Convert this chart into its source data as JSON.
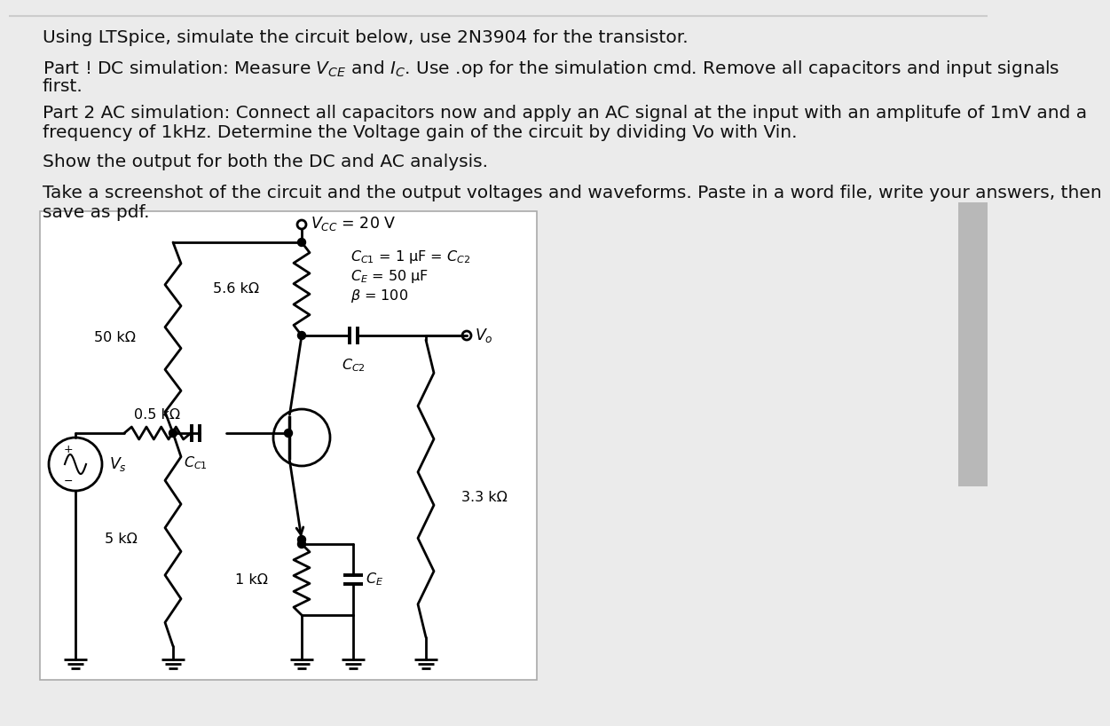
{
  "bg_color": "#ebebeb",
  "white": "#ffffff",
  "black": "#000000",
  "gray_panel": "#c0c0c0",
  "body_fontsize": 14.5,
  "circuit_fontsize": 11.5,
  "line1": "Using LTSpice, simulate the circuit below, use 2N3904 for the transistor.",
  "line2a": "Part ! DC simulation: Measure V",
  "line2b": "CE",
  "line2c": " and I",
  "line2d": "C",
  "line2e": ". Use .op for the simulation cmd. Remove all capacitors and input signals",
  "line2f": "first.",
  "line3a": "Part 2 AC simulation: Connect all capacitors now and apply an AC signal at the input with an amplitufe of 1mV and a",
  "line3b": "frequency of 1kHz. Determine the Voltage gain of the circuit by dividing Vo with Vin.",
  "line4": "Show the output for both the DC and AC analysis.",
  "line5a": "Take a screenshot of the circuit and the output voltages and waveforms. Paste in a word file, write your answers, then",
  "line5b": "save as pdf.",
  "vcc_label": "$V_{CC}$ = 20 V",
  "r50_label": "50 kΩ",
  "r56_label": "5.6 kΩ",
  "r5_label": "5 kΩ",
  "r05_label": "0.5 kΩ",
  "r1_label": "1 kΩ",
  "r33_label": "3.3 kΩ",
  "cc1_label": "$C_{C1}$",
  "cc2_label": "$C_{C2}$",
  "vs_label": "$V_s$",
  "vo_label": "$V_o$",
  "param1": "$C_{C1}$ = 1 μF = $C_{C2}$",
  "param2": "$C_E$ = 50 μF",
  "param3": "$\\beta$ = 100",
  "ce_label": "$C_E$"
}
